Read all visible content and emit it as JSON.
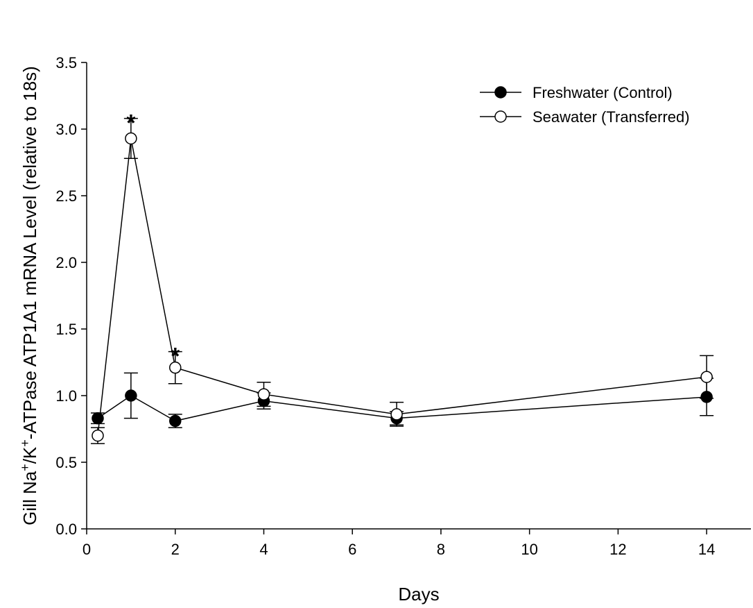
{
  "chart_data": {
    "type": "line",
    "xlabel": "Days",
    "ylabel": {
      "parts": [
        "Gill Na",
        "+",
        "/K",
        "+",
        "-ATPase ATP1A1 mRNA Level (relative to 18s)"
      ]
    },
    "xlim": [
      0,
      15
    ],
    "ylim": [
      0,
      3.5
    ],
    "xticks": [
      "0",
      "2",
      "4",
      "6",
      "8",
      "10",
      "12",
      "14"
    ],
    "yticks": [
      "0.0",
      "0.5",
      "1.0",
      "1.5",
      "2.0",
      "2.5",
      "3.0",
      "3.5"
    ],
    "legend_position": "top-right",
    "grid": false,
    "series": [
      {
        "name": "Freshwater (Control)",
        "marker": "filled-circle",
        "color": "#000000",
        "x": [
          0.25,
          1,
          2,
          4,
          7,
          14
        ],
        "y": [
          0.83,
          1.0,
          0.81,
          0.96,
          0.83,
          0.99
        ],
        "error": [
          0.04,
          0.17,
          0.05,
          0.06,
          0.05,
          0.14
        ]
      },
      {
        "name": "Seawater (Transferred)",
        "marker": "open-circle",
        "color": "#000000",
        "x": [
          0.25,
          1,
          2,
          4,
          7,
          14
        ],
        "y": [
          0.7,
          2.93,
          1.21,
          1.01,
          0.86,
          1.14
        ],
        "error": [
          0.06,
          0.15,
          0.12,
          0.09,
          0.09,
          0.16
        ]
      }
    ],
    "annotations": [
      {
        "text": "*",
        "x": 1,
        "y": 3.08
      },
      {
        "text": "*",
        "x": 2,
        "y": 1.33
      }
    ]
  }
}
